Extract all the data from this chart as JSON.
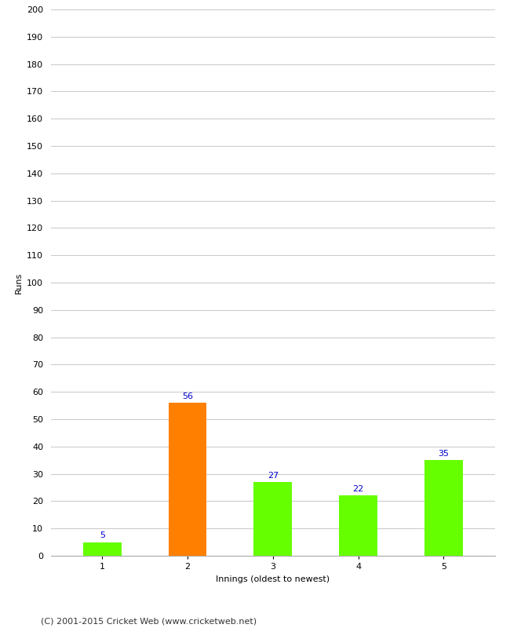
{
  "categories": [
    "1",
    "2",
    "3",
    "4",
    "5"
  ],
  "values": [
    5,
    56,
    27,
    22,
    35
  ],
  "bar_colors": [
    "#66ff00",
    "#ff8000",
    "#66ff00",
    "#66ff00",
    "#66ff00"
  ],
  "xlabel": "Innings (oldest to newest)",
  "ylabel": "Runs",
  "ylim": [
    0,
    200
  ],
  "ytick_step": 10,
  "annotation_color": "#0000cc",
  "annotation_fontsize": 8,
  "footer": "(C) 2001-2015 Cricket Web (www.cricketweb.net)",
  "background_color": "#ffffff",
  "grid_color": "#cccccc",
  "bar_width": 0.45,
  "axis_label_fontsize": 8,
  "tick_fontsize": 8,
  "footer_fontsize": 8
}
